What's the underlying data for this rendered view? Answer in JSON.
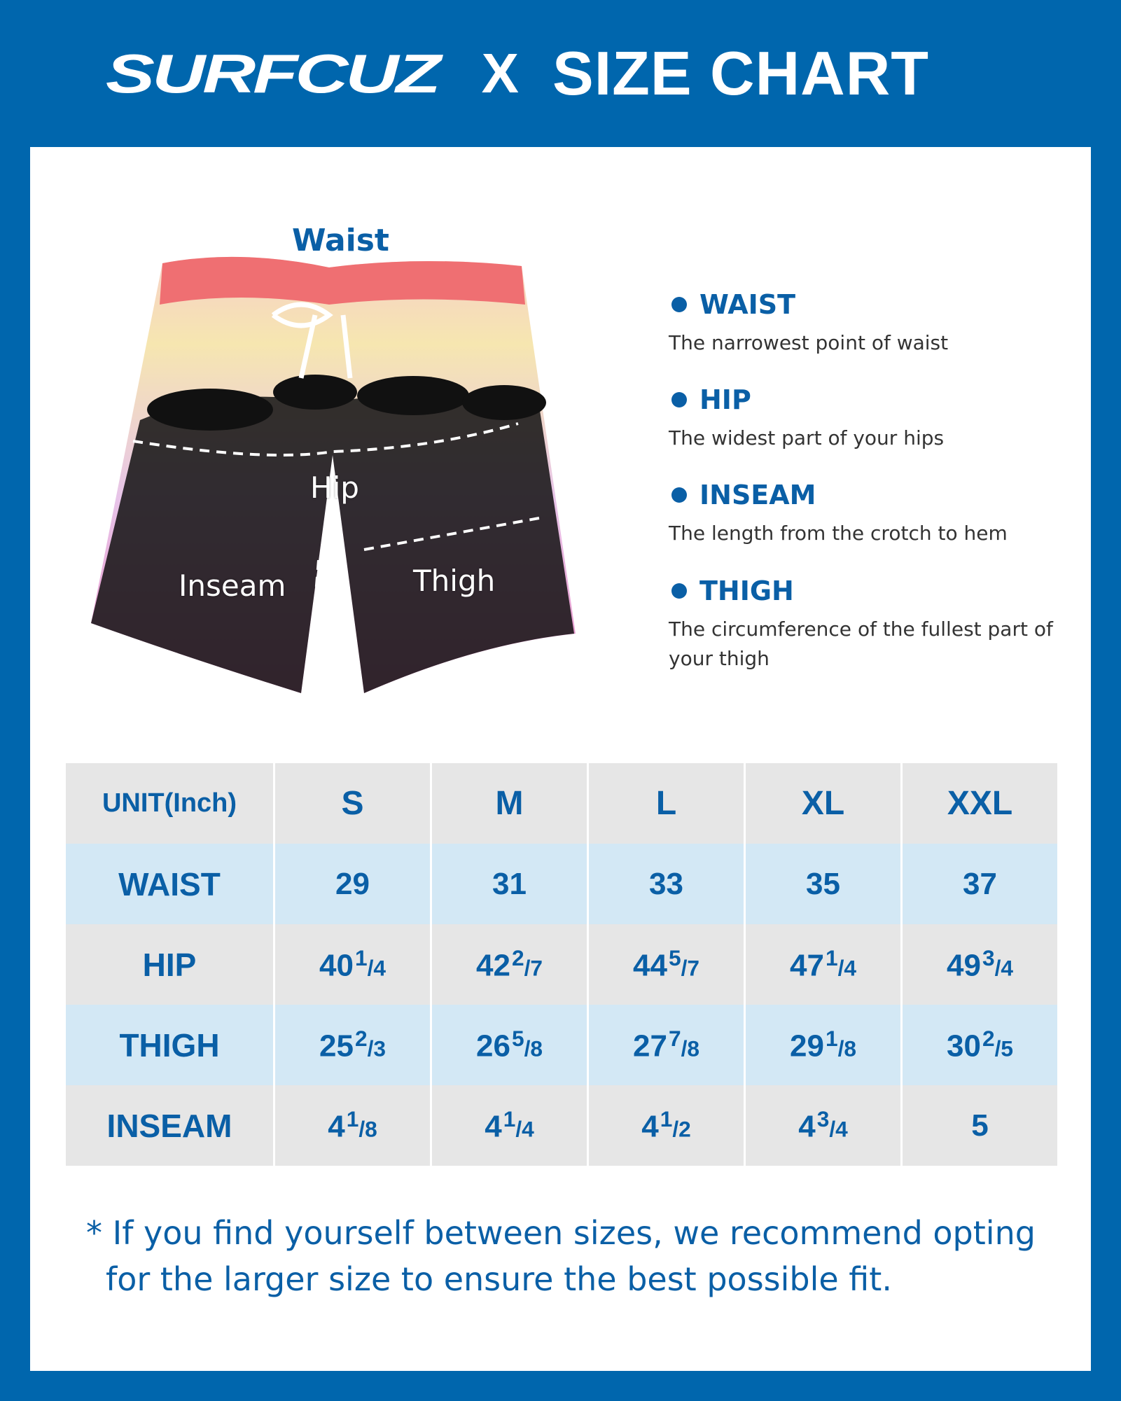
{
  "header": {
    "brand": "SURFCUZ",
    "separator": "X",
    "title": "SIZE CHART"
  },
  "diagram": {
    "waist": "Waist",
    "hip": "Hip",
    "inseam": "Inseam",
    "thigh": "Thigh"
  },
  "definitions": [
    {
      "term": "WAIST",
      "desc": "The narrowest point of waist"
    },
    {
      "term": "HIP",
      "desc": "The widest part of your hips"
    },
    {
      "term": "INSEAM",
      "desc": "The length from the crotch to hem"
    },
    {
      "term": "THIGH",
      "desc": "The circumference of the fullest part of your thigh"
    }
  ],
  "table": {
    "unit": "UNIT(Inch)",
    "sizes": [
      "S",
      "M",
      "L",
      "XL",
      "XXL"
    ],
    "rows": [
      {
        "label": "WAIST",
        "values": [
          [
            "29",
            "",
            ""
          ],
          [
            "31",
            "",
            ""
          ],
          [
            "33",
            "",
            ""
          ],
          [
            "35",
            "",
            ""
          ],
          [
            "37",
            "",
            ""
          ]
        ]
      },
      {
        "label": "HIP",
        "values": [
          [
            "40",
            "1",
            "4"
          ],
          [
            "42",
            "2",
            "7"
          ],
          [
            "44",
            "5",
            "7"
          ],
          [
            "47",
            "1",
            "4"
          ],
          [
            "49",
            "3",
            "4"
          ]
        ]
      },
      {
        "label": "THIGH",
        "values": [
          [
            "25",
            "2",
            "3"
          ],
          [
            "26",
            "5",
            "8"
          ],
          [
            "27",
            "7",
            "8"
          ],
          [
            "29",
            "1",
            "8"
          ],
          [
            "30",
            "2",
            "5"
          ]
        ]
      },
      {
        "label": "INSEAM",
        "values": [
          [
            "4",
            "1",
            "8"
          ],
          [
            "4",
            "1",
            "4"
          ],
          [
            "4",
            "1",
            "2"
          ],
          [
            "4",
            "3",
            "4"
          ],
          [
            "5",
            "",
            ""
          ]
        ]
      }
    ]
  },
  "footnote": {
    "line1": "* If you find yourself between sizes, we recommend opting",
    "line2": "for the larger size to ensure the best possible fit."
  },
  "colors": {
    "brand_blue": "#0066ad",
    "text_blue": "#0a5fa6",
    "row_gray": "#e6e6e6",
    "row_blue": "#d3e8f5"
  }
}
